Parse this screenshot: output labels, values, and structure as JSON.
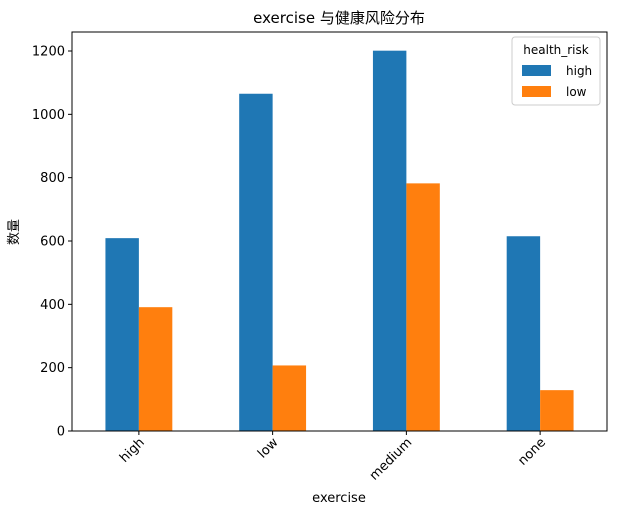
{
  "chart_data": {
    "type": "bar",
    "title": "exercise 与健康风险分布",
    "xlabel": "exercise",
    "ylabel": "数量",
    "categories": [
      "high",
      "low",
      "medium",
      "none"
    ],
    "series": [
      {
        "name": "high",
        "color": "#1f77b4",
        "values": [
          609,
          1065,
          1201,
          615
        ]
      },
      {
        "name": "low",
        "color": "#ff7f0e",
        "values": [
          391,
          207,
          782,
          129
        ]
      }
    ],
    "ylim": [
      0,
      1260
    ],
    "yticks": [
      0,
      200,
      400,
      600,
      800,
      1000,
      1200
    ],
    "grid": false,
    "legend": {
      "title": "health_risk",
      "position": "top-right"
    }
  }
}
